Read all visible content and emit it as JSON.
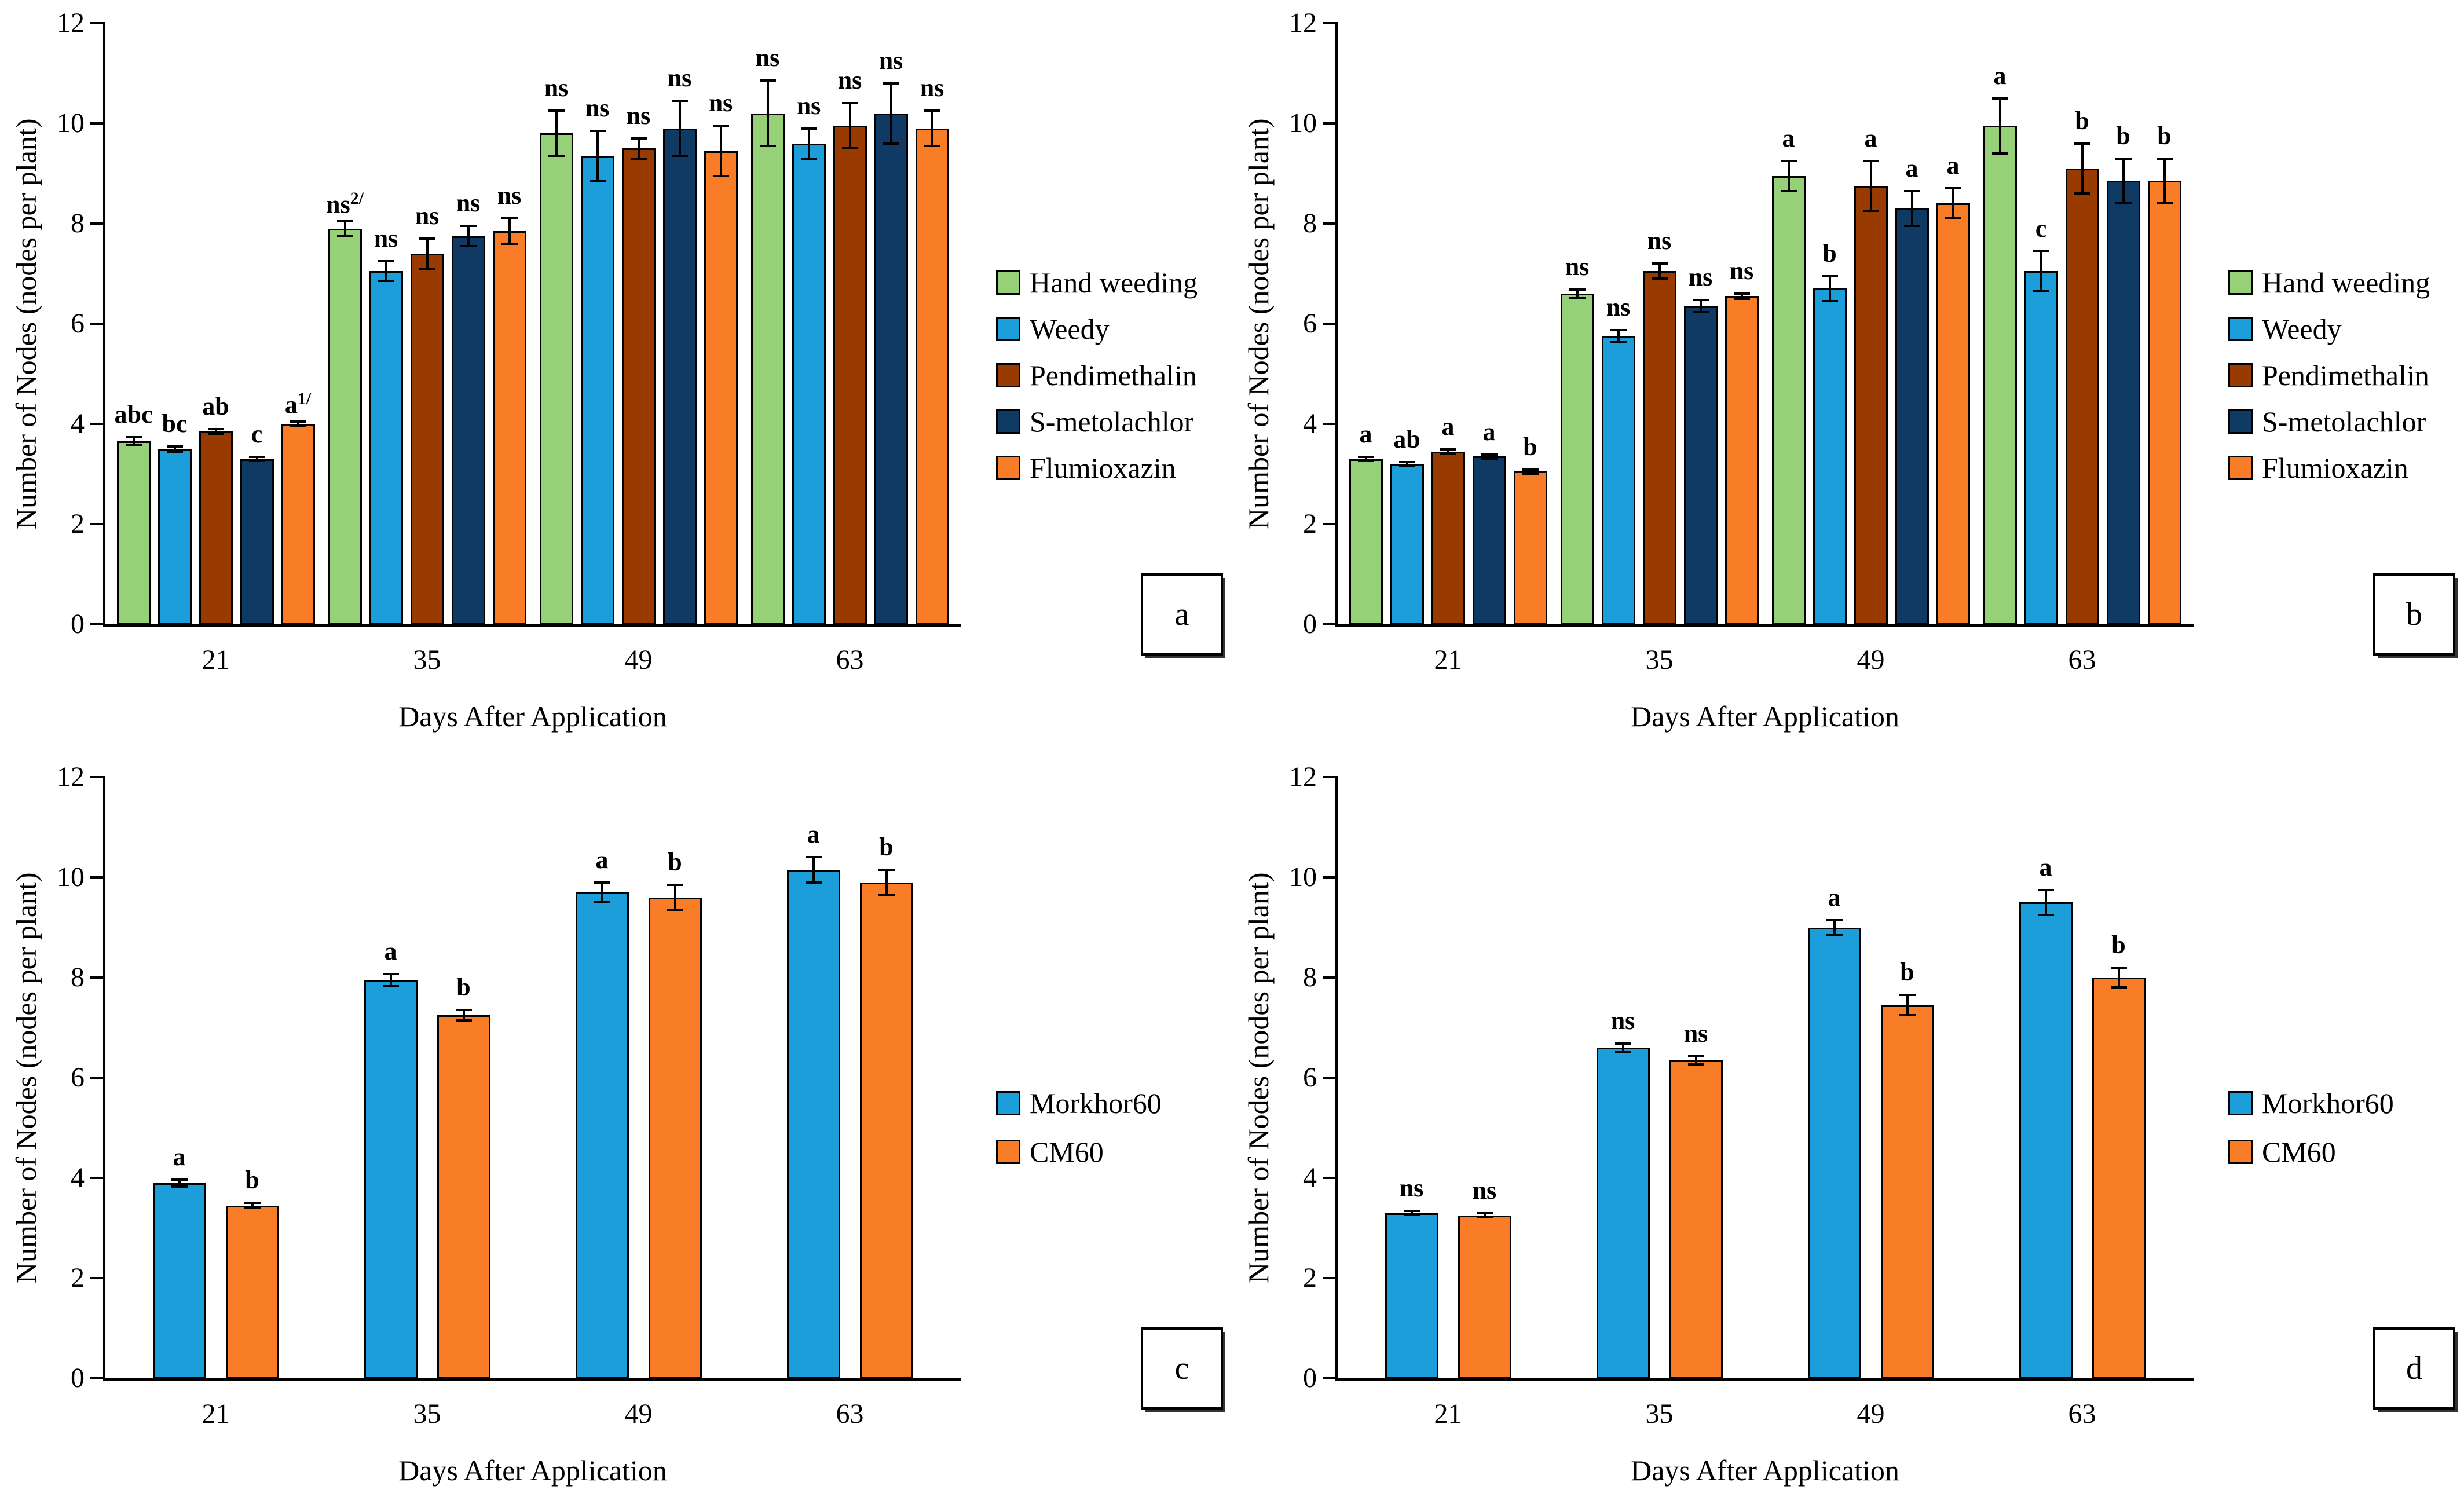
{
  "figure": {
    "background": "#ffffff",
    "ylim": [
      0,
      12
    ],
    "y_ticks": [
      "0",
      "2",
      "4",
      "6",
      "8",
      "10",
      "12"
    ]
  },
  "chart_data": [
    {
      "type": "bar",
      "panel": "a",
      "categories": [
        "21",
        "35",
        "49",
        "63"
      ],
      "xlabel": "Days After Application",
      "ylabel": "Number of Nodes (nodes per plant)",
      "ylim": [
        0,
        12
      ],
      "grid": false,
      "legend_position": "right",
      "series": [
        {
          "name": "Hand weeding",
          "color": "#96d077",
          "values": [
            3.65,
            7.9,
            9.8,
            10.2
          ],
          "errors": [
            0.08,
            0.15,
            0.45,
            0.65
          ],
          "sig": [
            "abc",
            "ns",
            "ns",
            "ns"
          ],
          "sig_sup": [
            "",
            "2/",
            "",
            ""
          ]
        },
        {
          "name": "Weedy",
          "color": "#1b9ed9",
          "values": [
            3.5,
            7.05,
            9.35,
            9.6
          ],
          "errors": [
            0.05,
            0.2,
            0.5,
            0.3
          ],
          "sig": [
            "bc",
            "ns",
            "ns",
            "ns"
          ],
          "sig_sup": [
            "",
            "",
            "",
            ""
          ]
        },
        {
          "name": "Pendimethalin",
          "color": "#993a00",
          "values": [
            3.85,
            7.4,
            9.5,
            9.95
          ],
          "errors": [
            0.05,
            0.3,
            0.2,
            0.45
          ],
          "sig": [
            "ab",
            "ns",
            "ns",
            "ns"
          ],
          "sig_sup": [
            "",
            "",
            "",
            ""
          ]
        },
        {
          "name": "S-metolachlor",
          "color": "#0e3a63",
          "values": [
            3.3,
            7.75,
            9.9,
            10.2
          ],
          "errors": [
            0.04,
            0.2,
            0.55,
            0.6
          ],
          "sig": [
            "c",
            "ns",
            "ns",
            "ns"
          ],
          "sig_sup": [
            "",
            "",
            "",
            ""
          ]
        },
        {
          "name": "Flumioxazin",
          "color": "#f97d26",
          "values": [
            4.0,
            7.85,
            9.45,
            9.9
          ],
          "errors": [
            0.05,
            0.25,
            0.5,
            0.35
          ],
          "sig": [
            "a",
            "ns",
            "ns",
            "ns"
          ],
          "sig_sup": [
            "1/",
            "",
            "",
            ""
          ]
        }
      ]
    },
    {
      "type": "bar",
      "panel": "b",
      "categories": [
        "21",
        "35",
        "49",
        "63"
      ],
      "xlabel": "Days After Application",
      "ylabel": "Number of Nodes (nodes per plant)",
      "ylim": [
        0,
        12
      ],
      "grid": false,
      "legend_position": "right",
      "series": [
        {
          "name": "Hand weeding",
          "color": "#96d077",
          "values": [
            3.3,
            6.6,
            8.95,
            9.95
          ],
          "errors": [
            0.04,
            0.08,
            0.3,
            0.55
          ],
          "sig": [
            "a",
            "ns",
            "a",
            "a"
          ],
          "sig_sup": [
            "",
            "",
            "",
            ""
          ]
        },
        {
          "name": "Weedy",
          "color": "#1b9ed9",
          "values": [
            3.2,
            5.75,
            6.7,
            7.05
          ],
          "errors": [
            0.04,
            0.12,
            0.25,
            0.4
          ],
          "sig": [
            "ab",
            "ns",
            "b",
            "c"
          ],
          "sig_sup": [
            "",
            "",
            "",
            ""
          ]
        },
        {
          "name": "Pendimethalin",
          "color": "#993a00",
          "values": [
            3.45,
            7.05,
            8.75,
            9.1
          ],
          "errors": [
            0.04,
            0.15,
            0.5,
            0.5
          ],
          "sig": [
            "a",
            "ns",
            "a",
            "b"
          ],
          "sig_sup": [
            "",
            "",
            "",
            ""
          ]
        },
        {
          "name": "S-metolachlor",
          "color": "#0e3a63",
          "values": [
            3.35,
            6.35,
            8.3,
            8.85
          ],
          "errors": [
            0.04,
            0.12,
            0.35,
            0.45
          ],
          "sig": [
            "a",
            "ns",
            "a",
            "b"
          ],
          "sig_sup": [
            "",
            "",
            "",
            ""
          ]
        },
        {
          "name": "Flumioxazin",
          "color": "#f97d26",
          "values": [
            3.05,
            6.55,
            8.4,
            8.85
          ],
          "errors": [
            0.04,
            0.05,
            0.3,
            0.45
          ],
          "sig": [
            "b",
            "ns",
            "a",
            "b"
          ],
          "sig_sup": [
            "",
            "",
            "",
            ""
          ]
        }
      ]
    },
    {
      "type": "bar",
      "panel": "c",
      "categories": [
        "21",
        "35",
        "49",
        "63"
      ],
      "xlabel": "Days After Application",
      "ylabel": "Number of Nodes (nodes per plant)",
      "ylim": [
        0,
        12
      ],
      "grid": false,
      "legend_position": "right",
      "series": [
        {
          "name": "Morkhor60",
          "color": "#1b9ed9",
          "values": [
            3.9,
            7.95,
            9.7,
            10.15
          ],
          "errors": [
            0.07,
            0.12,
            0.2,
            0.25
          ],
          "sig": [
            "a",
            "a",
            "a",
            "a"
          ],
          "sig_sup": [
            "",
            "",
            "",
            ""
          ]
        },
        {
          "name": "CM60",
          "color": "#f97d26",
          "values": [
            3.45,
            7.25,
            9.6,
            9.9
          ],
          "errors": [
            0.05,
            0.1,
            0.25,
            0.25
          ],
          "sig": [
            "b",
            "b",
            "b",
            "b"
          ],
          "sig_sup": [
            "",
            "",
            "",
            ""
          ]
        }
      ]
    },
    {
      "type": "bar",
      "panel": "d",
      "categories": [
        "21",
        "35",
        "49",
        "63"
      ],
      "xlabel": "Days After Application",
      "ylabel": "Number of Nodes (nodes per plant)",
      "ylim": [
        0,
        12
      ],
      "grid": false,
      "legend_position": "right",
      "series": [
        {
          "name": "Morkhor60",
          "color": "#1b9ed9",
          "values": [
            3.3,
            6.6,
            9.0,
            9.5
          ],
          "errors": [
            0.04,
            0.08,
            0.15,
            0.25
          ],
          "sig": [
            "ns",
            "ns",
            "a",
            "a"
          ],
          "sig_sup": [
            "",
            "",
            "",
            ""
          ]
        },
        {
          "name": "CM60",
          "color": "#f97d26",
          "values": [
            3.25,
            6.35,
            7.45,
            8.0
          ],
          "errors": [
            0.04,
            0.08,
            0.2,
            0.2
          ],
          "sig": [
            "ns",
            "ns",
            "b",
            "b"
          ],
          "sig_sup": [
            "",
            "",
            "",
            ""
          ]
        }
      ]
    }
  ]
}
